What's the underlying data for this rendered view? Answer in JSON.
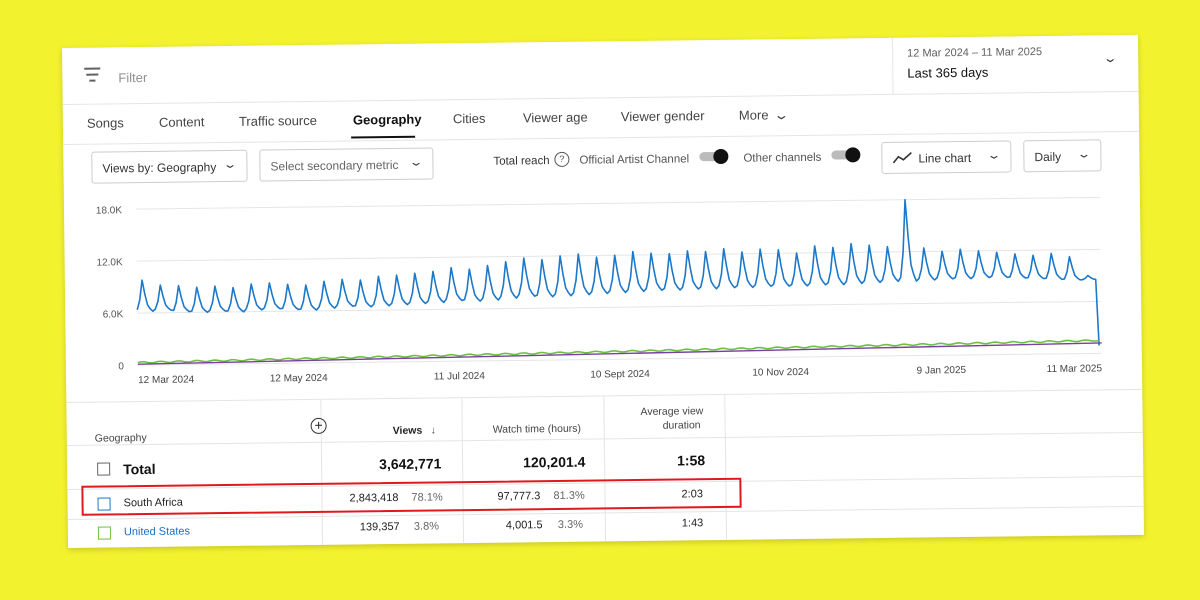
{
  "header": {
    "filter_placeholder": "Filter",
    "date_range": "12 Mar 2024 – 11 Mar 2025",
    "date_label": "Last 365 days"
  },
  "tabs": [
    {
      "label": "Songs"
    },
    {
      "label": "Content"
    },
    {
      "label": "Traffic source"
    },
    {
      "label": "Geography",
      "active": true
    },
    {
      "label": "Cities"
    },
    {
      "label": "Viewer age"
    },
    {
      "label": "Viewer gender"
    },
    {
      "label": "More"
    }
  ],
  "controls": {
    "views_by": "Views by: Geography",
    "secondary_metric": "Select secondary metric",
    "total_reach": "Total reach",
    "official_artist_channel": "Official Artist Channel",
    "other_channels": "Other channels",
    "chart_type": "Line chart",
    "interval": "Daily"
  },
  "colors": {
    "south_africa": "#1c78c9",
    "united_states": "#6cc142",
    "total": "#7b3fa0",
    "highlight": "#e0191f"
  },
  "chart_data": {
    "type": "line",
    "y_ticks": [
      "18.0K",
      "12.0K",
      "6.0K",
      "0"
    ],
    "ylim": [
      0,
      18000
    ],
    "x_ticks": [
      "12 Mar 2024",
      "12 May 2024",
      "11 Jul 2024",
      "10 Sept 2024",
      "10 Nov 2024",
      "9 Jan 2025",
      "11 Mar 2025"
    ],
    "grid": true,
    "series": [
      {
        "name": "South Africa",
        "color": "#1c78c9",
        "weekly_low": [
          6200,
          6300,
          6100,
          6000,
          6100,
          6000,
          6200,
          6300,
          6200,
          6100,
          6300,
          6500,
          6400,
          6500,
          6600,
          6700,
          6800,
          7000,
          6900,
          7000,
          7200,
          7400,
          7300,
          7400,
          7500,
          7600,
          7700,
          7800,
          7900,
          7900,
          8000,
          8000,
          8100,
          8100,
          8200,
          8200,
          8200,
          8300,
          8300,
          8400,
          8500,
          8600,
          8600,
          8700,
          8800,
          8800,
          8900,
          8900,
          8800,
          8700,
          8600,
          8500,
          8500
        ],
        "weekly_peak": [
          9800,
          9200,
          9100,
          8900,
          9000,
          8800,
          9200,
          9300,
          9100,
          9000,
          9400,
          9600,
          9500,
          9900,
          10000,
          10200,
          10400,
          10800,
          10600,
          11000,
          11400,
          11800,
          11600,
          12000,
          12200,
          11800,
          12000,
          12400,
          12200,
          12100,
          12400,
          12300,
          12600,
          12200,
          12500,
          12400,
          12000,
          12800,
          12600,
          13000,
          12800,
          12600,
          18000,
          12400,
          12000,
          12200,
          12000,
          11800,
          11600,
          11400,
          11600,
          11200,
          9000
        ],
        "end_value": 900
      },
      {
        "name": "United States",
        "color": "#6cc142",
        "start": 300,
        "end": 1500
      },
      {
        "name": "Total",
        "color": "#7b3fa0",
        "start": 100,
        "end": 1200
      }
    ]
  },
  "table": {
    "headers": {
      "geography": "Geography",
      "views": "Views",
      "sort_icon": "↓",
      "watch_time": "Watch time (hours)",
      "avg_duration_1": "Average view",
      "avg_duration_2": "duration"
    },
    "total": {
      "label": "Total",
      "views": "3,642,771",
      "watch_time": "120,201.4",
      "avg_duration": "1:58"
    },
    "rows": [
      {
        "country": "South Africa",
        "views": "2,843,418",
        "views_pct": "78.1%",
        "watch_time": "97,777.3",
        "watch_pct": "81.3%",
        "avg_duration": "2:03"
      },
      {
        "country": "United States",
        "views": "139,357",
        "views_pct": "3.8%",
        "watch_time": "4,001.5",
        "watch_pct": "3.3%",
        "avg_duration": "1:43"
      }
    ]
  }
}
